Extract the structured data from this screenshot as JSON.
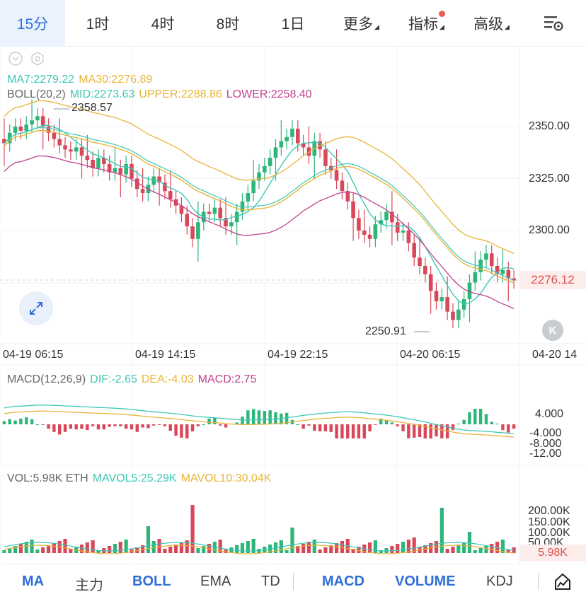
{
  "intervals": [
    {
      "label": "15分",
      "active": true
    },
    {
      "label": "1时",
      "active": false
    },
    {
      "label": "4时",
      "active": false
    },
    {
      "label": "8时",
      "active": false
    },
    {
      "label": "1日",
      "active": false
    }
  ],
  "more_label": "更多",
  "indicator_label": "指标",
  "advanced_label": "高级",
  "main": {
    "ma7": "MA7:2279.22",
    "ma30": "MA30:2276.89",
    "boll": "BOLL(20,2)",
    "boll_mid": "MID:2273.63",
    "boll_upper": "UPPER:2288.86",
    "boll_lower": "LOWER:2258.40",
    "high_marker": "2358.57",
    "low_marker": "2250.91",
    "current_price": "2276.12",
    "price_axis": [
      "2350.00",
      "2325.00",
      "2300.00"
    ],
    "time_axis": [
      "04-19 06:15",
      "04-19 14:15",
      "04-19 22:15",
      "04-20 06:15",
      "04-20 14"
    ]
  },
  "macd": {
    "title": "MACD(12,26,9)",
    "dif": "DIF:-2.65",
    "dea": "DEA:-4.03",
    "macd": "MACD:2.75",
    "axis": [
      "4.000",
      "-4.000",
      "-8.000",
      "-12.00"
    ]
  },
  "vol": {
    "title": "VOL:5.98K ETH",
    "mavol5": "MAVOL5:25.29K",
    "mavol10": "MAVOL10:30.04K",
    "axis": [
      "200.00K",
      "150.00K",
      "100.00K",
      "50.00K"
    ],
    "current": "5.98K"
  },
  "bottom_tabs": [
    {
      "label": "MA",
      "on": true
    },
    {
      "label": "主力",
      "on": false
    },
    {
      "label": "BOLL",
      "on": true
    },
    {
      "label": "EMA",
      "on": false
    },
    {
      "label": "TD",
      "on": false
    },
    {
      "label": "MACD",
      "on": true
    },
    {
      "label": "VOLUME",
      "on": true
    },
    {
      "label": "KDJ",
      "on": false
    }
  ],
  "colors": {
    "up": "#2db57a",
    "down": "#d9485a",
    "ma7": "#3fc8b4",
    "ma30": "#e8b43a",
    "lower": "#c3428f",
    "accent": "#2f6fd6"
  },
  "chart_data": {
    "type": "candlestick",
    "price_range": [
      2250.91,
      2358.57
    ],
    "close_approx": [
      2342,
      2347,
      2350,
      2348,
      2351,
      2353,
      2355,
      2350,
      2347,
      2344,
      2341,
      2339,
      2338,
      2340,
      2336,
      2334,
      2330,
      2335,
      2332,
      2328,
      2330,
      2327,
      2332,
      2325,
      2320,
      2318,
      2322,
      2326,
      2323,
      2319,
      2315,
      2312,
      2308,
      2302,
      2296,
      2304,
      2309,
      2308,
      2311,
      2306,
      2302,
      2304,
      2309,
      2314,
      2318,
      2324,
      2328,
      2331,
      2335,
      2340,
      2343,
      2345,
      2349,
      2342,
      2340,
      2336,
      2343,
      2339,
      2331,
      2329,
      2324,
      2319,
      2314,
      2306,
      2300,
      2298,
      2296,
      2303,
      2305,
      2309,
      2304,
      2299,
      2300,
      2294,
      2287,
      2283,
      2279,
      2271,
      2266,
      2268,
      2261,
      2257,
      2262,
      2267,
      2275,
      2280,
      2286,
      2289,
      2283,
      2279,
      2281,
      2277,
      2276
    ]
  }
}
